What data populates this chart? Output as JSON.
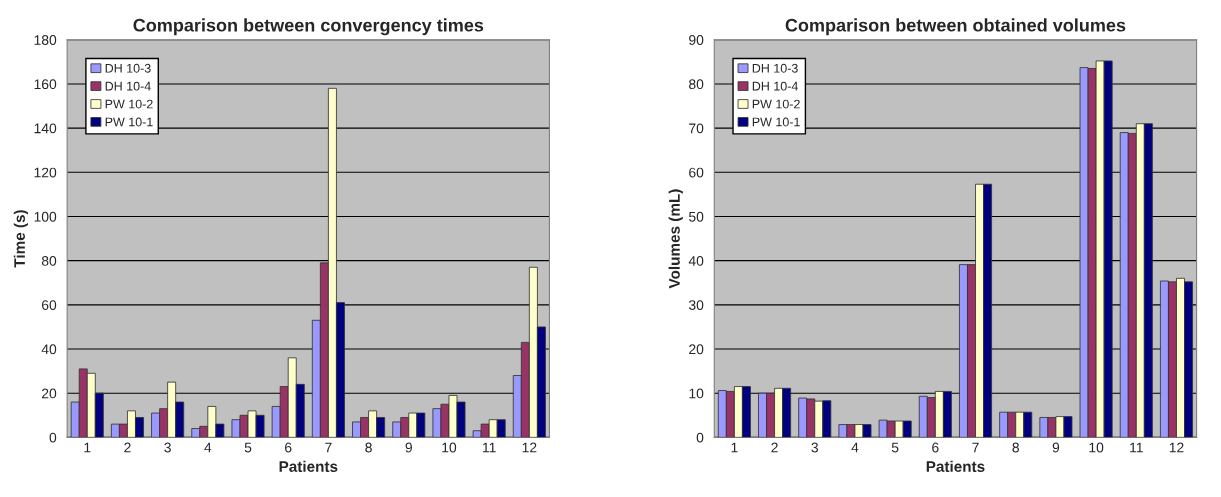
{
  "chart_data": [
    {
      "type": "bar",
      "title": "Comparison between convergency times",
      "xlabel": "Patients",
      "ylabel": "Time (s)",
      "categories": [
        "1",
        "2",
        "3",
        "4",
        "5",
        "6",
        "7",
        "8",
        "9",
        "10",
        "11",
        "12"
      ],
      "series": [
        {
          "name": "DH 10-3",
          "color": "#9999ff",
          "values": [
            16,
            6,
            11,
            4,
            8,
            14,
            53,
            7,
            7,
            13,
            3,
            28
          ]
        },
        {
          "name": "DH 10-4",
          "color": "#993366",
          "values": [
            31,
            6,
            13,
            5,
            10,
            23,
            79,
            9,
            9,
            15,
            6,
            43
          ]
        },
        {
          "name": "PW 10-2",
          "color": "#ffffcc",
          "values": [
            29,
            12,
            25,
            14,
            12,
            36,
            158,
            12,
            11,
            19,
            8,
            77
          ]
        },
        {
          "name": "PW 10-1",
          "color": "#000080",
          "values": [
            20,
            9,
            16,
            6,
            10,
            24,
            61,
            9,
            11,
            16,
            8,
            50
          ]
        }
      ],
      "ylim": [
        0,
        180
      ],
      "yticks": [
        0,
        20,
        40,
        60,
        80,
        100,
        120,
        140,
        160,
        180
      ],
      "grid": "y",
      "legend": "top left"
    },
    {
      "type": "bar",
      "title": "Comparison between obtained volumes",
      "xlabel": "Patients",
      "ylabel": "Volumes (mL)",
      "categories": [
        "1",
        "2",
        "3",
        "4",
        "5",
        "6",
        "7",
        "8",
        "9",
        "10",
        "11",
        "12"
      ],
      "series": [
        {
          "name": "DH 10-3",
          "color": "#9999ff",
          "values": [
            10.6,
            10,
            8.9,
            2.9,
            3.9,
            9.3,
            39.1,
            5.7,
            4.5,
            83.7,
            69,
            35.4
          ]
        },
        {
          "name": "DH 10-4",
          "color": "#993366",
          "values": [
            10.4,
            10,
            8.7,
            2.9,
            3.7,
            9.0,
            39.1,
            5.7,
            4.5,
            83.5,
            68.8,
            35.2
          ]
        },
        {
          "name": "PW 10-2",
          "color": "#ffffcc",
          "values": [
            11.5,
            11.1,
            8.2,
            2.9,
            3.7,
            10.4,
            57.3,
            5.7,
            4.7,
            85.2,
            71,
            36
          ]
        },
        {
          "name": "PW 10-1",
          "color": "#000080",
          "values": [
            11.5,
            11.1,
            8.3,
            2.9,
            3.7,
            10.4,
            57.3,
            5.7,
            4.7,
            85.2,
            71,
            35.2
          ]
        }
      ],
      "ylim": [
        0,
        90
      ],
      "yticks": [
        0,
        10,
        20,
        30,
        40,
        50,
        60,
        70,
        80,
        90
      ],
      "grid": "y",
      "legend": "top left"
    }
  ]
}
